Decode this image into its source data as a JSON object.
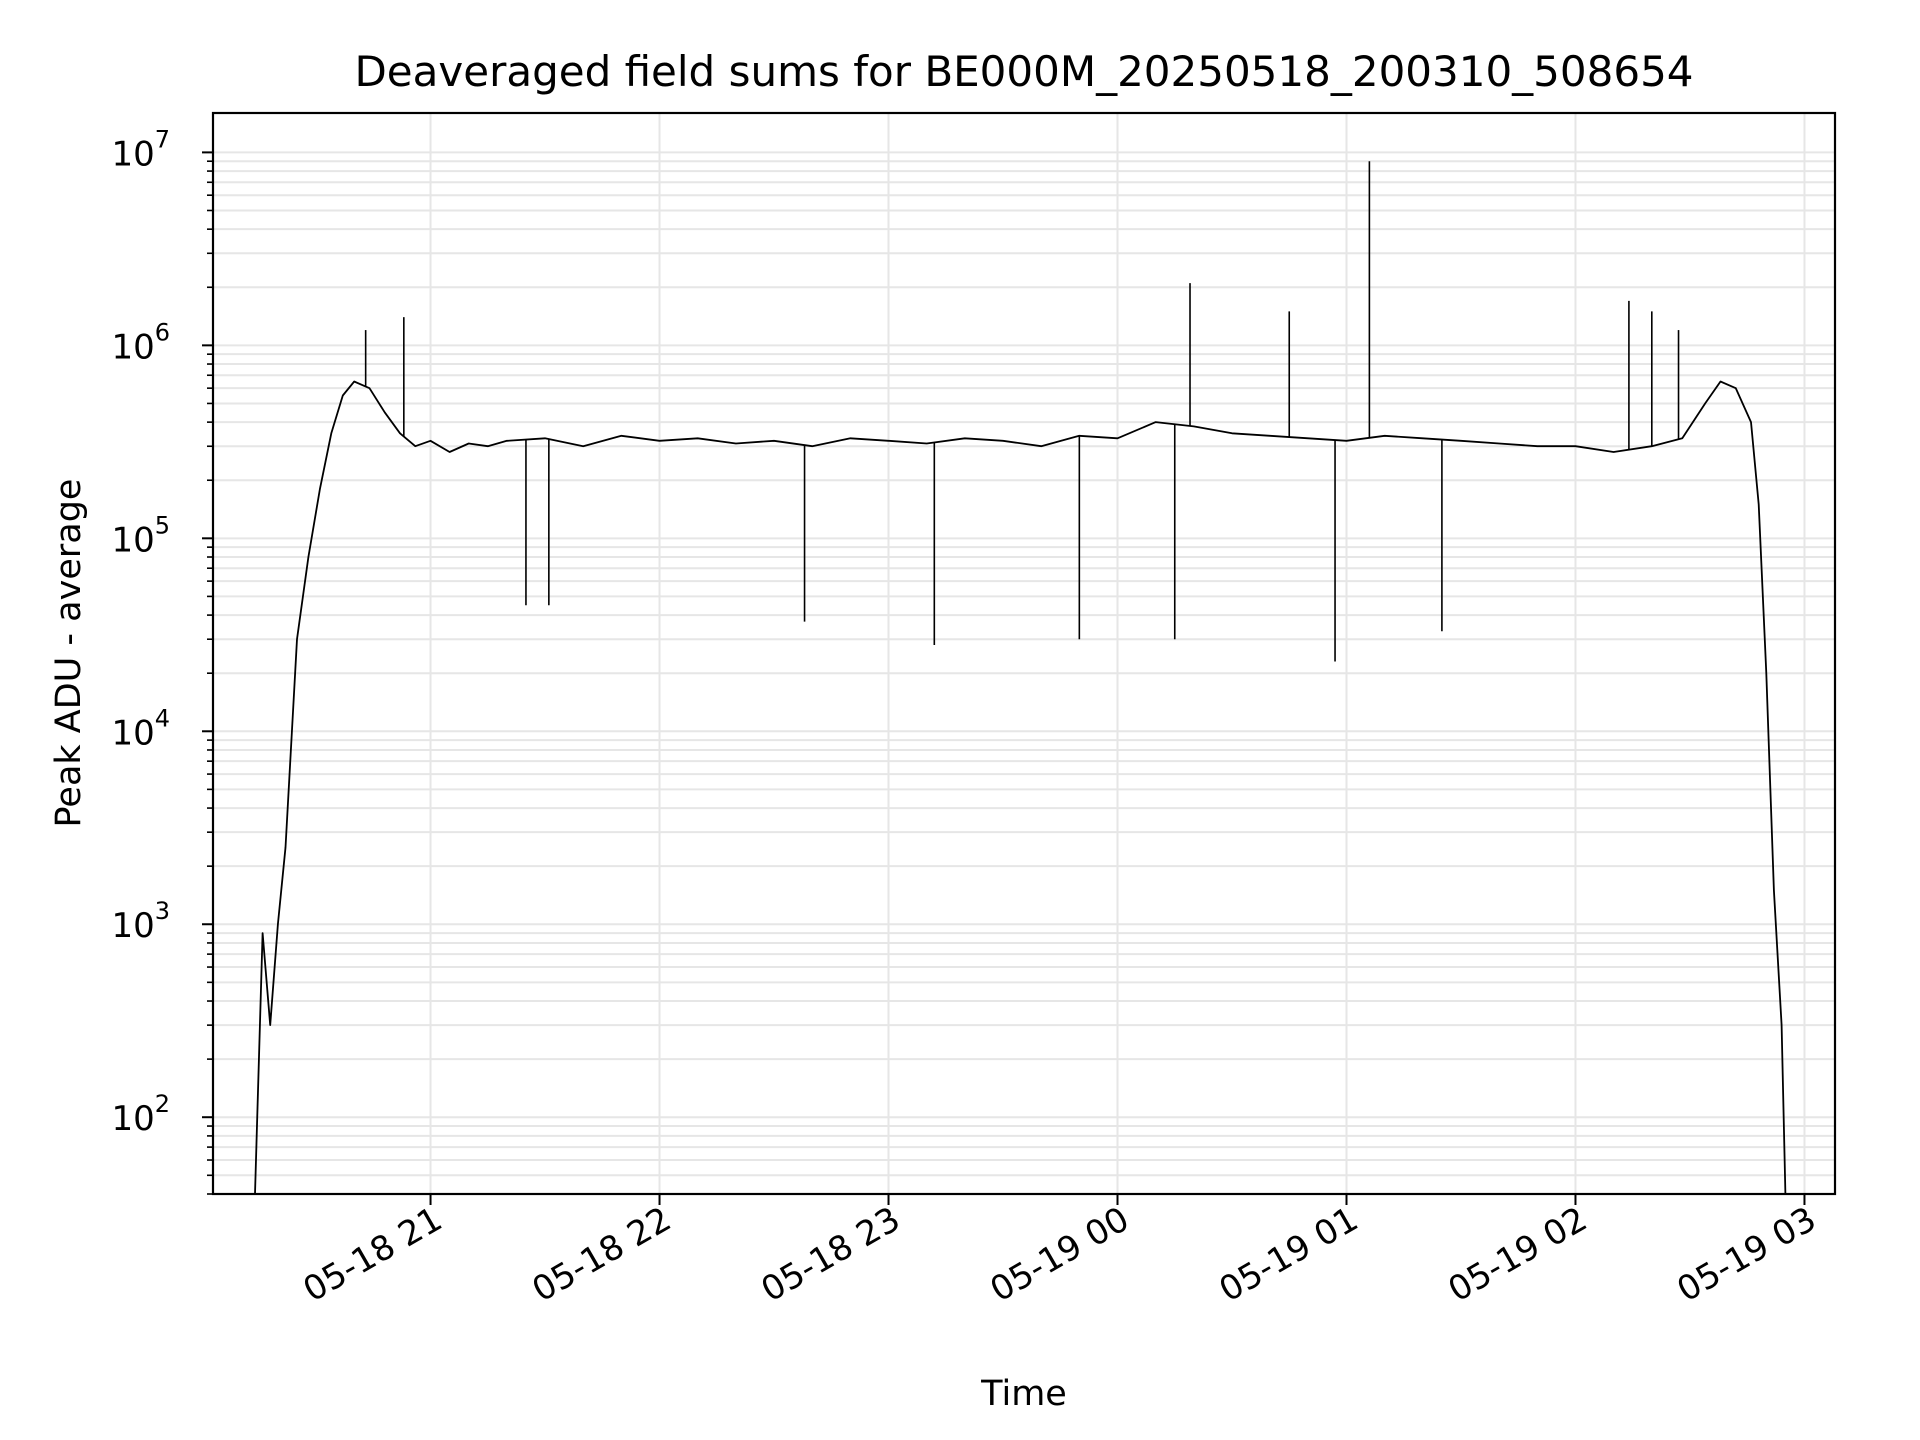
{
  "chart_data": {
    "type": "line",
    "title": "Deaveraged field sums for BE000M_20250518_200310_508654",
    "xlabel": "Time",
    "ylabel": "Peak ADU - average",
    "yscale": "log",
    "ylim": [
      40,
      16000000
    ],
    "xlim": [
      "2025-05-18 20:03",
      "2025-05-19 03:08"
    ],
    "grid": true,
    "line_color": "#000000",
    "grid_color": "#e6e6e6",
    "x_ticks": [
      {
        "time": "2025-05-18 21:00",
        "label": "05-18 21"
      },
      {
        "time": "2025-05-18 22:00",
        "label": "05-18 22"
      },
      {
        "time": "2025-05-18 23:00",
        "label": "05-18 23"
      },
      {
        "time": "2025-05-19 00:00",
        "label": "05-19 00"
      },
      {
        "time": "2025-05-19 01:00",
        "label": "05-19 01"
      },
      {
        "time": "2025-05-19 02:00",
        "label": "05-19 02"
      },
      {
        "time": "2025-05-19 03:00",
        "label": "05-19 03"
      }
    ],
    "y_ticks": [
      {
        "value": 100,
        "base": "10",
        "exp": "2"
      },
      {
        "value": 1000,
        "base": "10",
        "exp": "3"
      },
      {
        "value": 10000,
        "base": "10",
        "exp": "4"
      },
      {
        "value": 100000,
        "base": "10",
        "exp": "5"
      },
      {
        "value": 1000000,
        "base": "10",
        "exp": "6"
      },
      {
        "value": 10000000,
        "base": "10",
        "exp": "7"
      }
    ],
    "series": [
      {
        "x": [
          "2025-05-18 20:14",
          "2025-05-18 20:16",
          "2025-05-18 20:18",
          "2025-05-18 20:20",
          "2025-05-18 20:22",
          "2025-05-18 20:25",
          "2025-05-18 20:28",
          "2025-05-18 20:31",
          "2025-05-18 20:34",
          "2025-05-18 20:37",
          "2025-05-18 20:40",
          "2025-05-18 20:44",
          "2025-05-18 20:48",
          "2025-05-18 20:52",
          "2025-05-18 20:56",
          "2025-05-18 21:00",
          "2025-05-18 21:05",
          "2025-05-18 21:10",
          "2025-05-18 21:15",
          "2025-05-18 21:20",
          "2025-05-18 21:30",
          "2025-05-18 21:40",
          "2025-05-18 21:50",
          "2025-05-18 22:00",
          "2025-05-18 22:10",
          "2025-05-18 22:20",
          "2025-05-18 22:30",
          "2025-05-18 22:40",
          "2025-05-18 22:50",
          "2025-05-18 23:00",
          "2025-05-18 23:10",
          "2025-05-18 23:20",
          "2025-05-18 23:30",
          "2025-05-18 23:40",
          "2025-05-18 23:50",
          "2025-05-19 00:00",
          "2025-05-19 00:10",
          "2025-05-19 00:20",
          "2025-05-19 00:30",
          "2025-05-19 00:40",
          "2025-05-19 00:50",
          "2025-05-19 01:00",
          "2025-05-19 01:10",
          "2025-05-19 01:20",
          "2025-05-19 01:30",
          "2025-05-19 01:40",
          "2025-05-19 01:50",
          "2025-05-19 02:00",
          "2025-05-19 02:10",
          "2025-05-19 02:20",
          "2025-05-19 02:28",
          "2025-05-19 02:34",
          "2025-05-19 02:38",
          "2025-05-19 02:42",
          "2025-05-19 02:46",
          "2025-05-19 02:48",
          "2025-05-19 02:50",
          "2025-05-19 02:52",
          "2025-05-19 02:54",
          "2025-05-19 02:55"
        ],
        "y": [
          40,
          900,
          300,
          1000,
          2500,
          30000,
          80000,
          180000,
          350000,
          550000,
          650000,
          600000,
          450000,
          350000,
          300000,
          320000,
          280000,
          310000,
          300000,
          320000,
          330000,
          300000,
          340000,
          320000,
          330000,
          310000,
          320000,
          300000,
          330000,
          320000,
          310000,
          330000,
          320000,
          300000,
          340000,
          330000,
          400000,
          380000,
          350000,
          340000,
          330000,
          320000,
          340000,
          330000,
          320000,
          310000,
          300000,
          300000,
          280000,
          300000,
          330000,
          500000,
          650000,
          600000,
          400000,
          150000,
          20000,
          1500,
          300,
          40
        ]
      }
    ],
    "spikes": [
      {
        "x": "2025-05-18 20:43",
        "y": 1200000
      },
      {
        "x": "2025-05-18 20:53",
        "y": 1400000
      },
      {
        "x": "2025-05-18 21:25",
        "y": 45000
      },
      {
        "x": "2025-05-18 21:31",
        "y": 45000
      },
      {
        "x": "2025-05-18 22:38",
        "y": 37000
      },
      {
        "x": "2025-05-18 23:12",
        "y": 28000
      },
      {
        "x": "2025-05-18 23:50",
        "y": 30000
      },
      {
        "x": "2025-05-19 00:19",
        "y": 2100000
      },
      {
        "x": "2025-05-19 00:15",
        "y": 30000
      },
      {
        "x": "2025-05-19 00:45",
        "y": 1500000
      },
      {
        "x": "2025-05-19 00:57",
        "y": 23000
      },
      {
        "x": "2025-05-19 01:06",
        "y": 9000000
      },
      {
        "x": "2025-05-19 01:25",
        "y": 33000
      },
      {
        "x": "2025-05-19 02:14",
        "y": 1700000
      },
      {
        "x": "2025-05-19 02:20",
        "y": 1500000
      },
      {
        "x": "2025-05-19 02:27",
        "y": 1200000
      }
    ]
  }
}
